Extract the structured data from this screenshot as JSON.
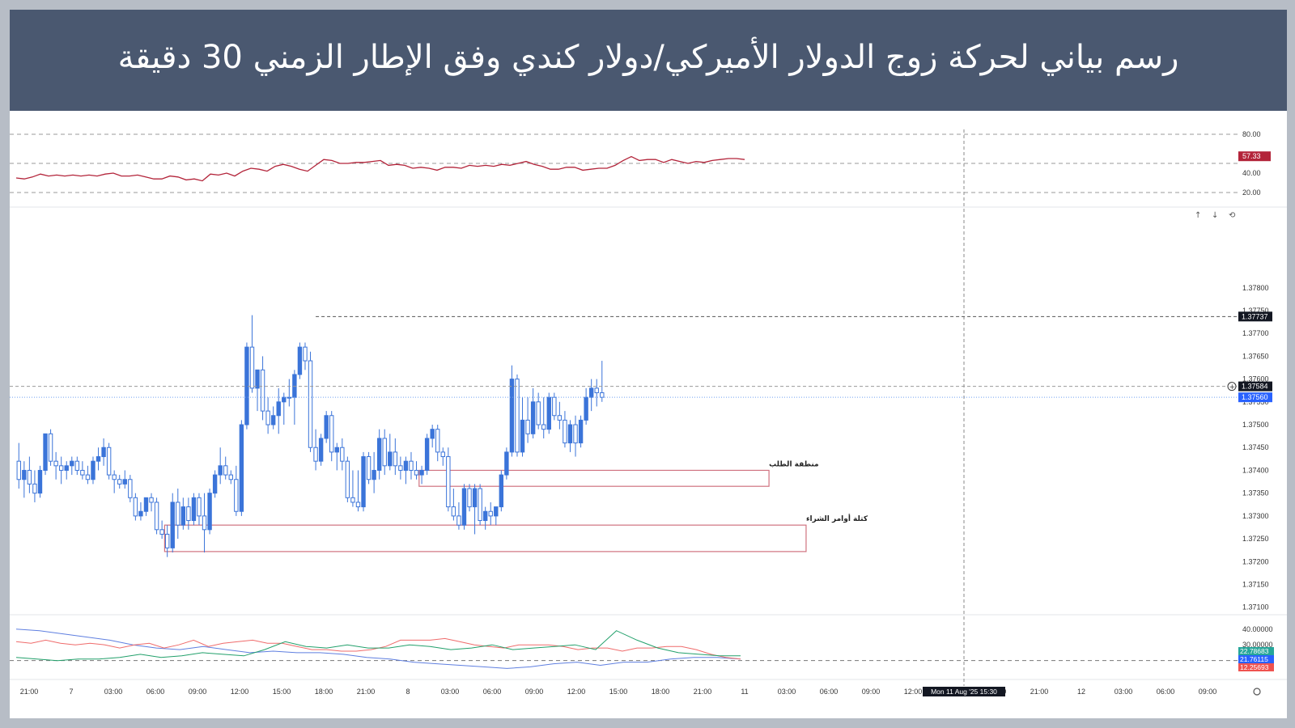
{
  "title": "رسم بياني لحركة زوج الدولار الأميركي/دولار كندي وفق الإطار الزمني 30 دقيقة",
  "colors": {
    "banner": "#4a5870",
    "candle": "#3b74d9",
    "zone": "#d0727f",
    "rsi": "#b3243a"
  },
  "rsi_panel": {
    "ticks": [
      "80.00",
      "40.00",
      "20.00"
    ],
    "badge": "57.33"
  },
  "adx_panel": {
    "ticks": [
      "40.00000",
      "30.00000"
    ],
    "badges": [
      {
        "label": "22.78683",
        "color": "#26a69a"
      },
      {
        "label": "21.76115",
        "color": "#2962ff"
      },
      {
        "label": "12.25693",
        "color": "#ef5350"
      }
    ]
  },
  "time_labels": [
    "21:00",
    "7",
    "03:00",
    "06:00",
    "09:00",
    "12:00",
    "15:00",
    "18:00",
    "21:00",
    "8",
    "03:00",
    "06:00",
    "09:00",
    "12:00",
    "15:00",
    "18:00",
    "21:00",
    "11",
    "03:00",
    "06:00",
    "09:00",
    "12:00",
    "18:00",
    "21:00",
    "12",
    "03:00",
    "06:00",
    "09:00"
  ],
  "crosshair_label": "Mon 11 Aug '25   15:30",
  "toolbar": {
    "up": "↑",
    "down": "↓",
    "reset": "⟲"
  },
  "chart_data": {
    "type": "candlestick",
    "title": "رسم بياني لحركة زوج الدولار الأميركي/دولار كندي وفق الإطار الزمني 30 دقيقة",
    "ylim": [
      1.3708,
      1.3789
    ],
    "y_ticks": [
      "1.37800",
      "1.37750",
      "1.37700",
      "1.37650",
      "1.37600",
      "1.37550",
      "1.37500",
      "1.37450",
      "1.37400",
      "1.37350",
      "1.37300",
      "1.37250",
      "1.37200",
      "1.37150",
      "1.37100"
    ],
    "price_badges": [
      {
        "label": "1.37737",
        "value": 1.37737,
        "style": "dark"
      },
      {
        "label": "1.37584",
        "value": 1.37584,
        "style": "dark"
      },
      {
        "label": "1.37560",
        "value": 1.3756,
        "style": "blue"
      }
    ],
    "zones": [
      {
        "label": "منطقة الطلب",
        "top": 1.374,
        "bottom": 1.37365,
        "from": 76,
        "to": 142
      },
      {
        "label": "كتلة أوامر الشراء",
        "top": 1.3728,
        "bottom": 1.37222,
        "from": 28,
        "to": 149
      }
    ],
    "ohlc": [
      [
        1.3742,
        1.3746,
        1.3736,
        1.3738
      ],
      [
        1.3738,
        1.3742,
        1.3734,
        1.374
      ],
      [
        1.374,
        1.3743,
        1.3735,
        1.3737
      ],
      [
        1.3737,
        1.374,
        1.3733,
        1.3735
      ],
      [
        1.3735,
        1.3741,
        1.3734,
        1.374
      ],
      [
        1.374,
        1.3748,
        1.3739,
        1.3748
      ],
      [
        1.3748,
        1.3749,
        1.3741,
        1.3742
      ],
      [
        1.3742,
        1.3744,
        1.3738,
        1.3741
      ],
      [
        1.3741,
        1.3743,
        1.3737,
        1.374
      ],
      [
        1.374,
        1.3742,
        1.3738,
        1.3741
      ],
      [
        1.3741,
        1.3743,
        1.3739,
        1.3742
      ],
      [
        1.3742,
        1.3743,
        1.3739,
        1.374
      ],
      [
        1.374,
        1.3742,
        1.3738,
        1.3739
      ],
      [
        1.3739,
        1.3741,
        1.3737,
        1.3738
      ],
      [
        1.3738,
        1.3743,
        1.3737,
        1.3742
      ],
      [
        1.3742,
        1.3745,
        1.374,
        1.3743
      ],
      [
        1.3743,
        1.3747,
        1.3741,
        1.3745
      ],
      [
        1.3745,
        1.3746,
        1.3738,
        1.3739
      ],
      [
        1.3739,
        1.374,
        1.3735,
        1.3738
      ],
      [
        1.3738,
        1.3739,
        1.3736,
        1.3737
      ],
      [
        1.3737,
        1.374,
        1.3736,
        1.3738
      ],
      [
        1.3738,
        1.3739,
        1.3733,
        1.3734
      ],
      [
        1.3734,
        1.3735,
        1.3729,
        1.373
      ],
      [
        1.373,
        1.3733,
        1.3729,
        1.3731
      ],
      [
        1.3731,
        1.3734,
        1.373,
        1.3734
      ],
      [
        1.3734,
        1.3735,
        1.3731,
        1.3733
      ],
      [
        1.3733,
        1.3734,
        1.3726,
        1.3727
      ],
      [
        1.3727,
        1.3729,
        1.3725,
        1.3726
      ],
      [
        1.3726,
        1.3728,
        1.3721,
        1.3723
      ],
      [
        1.3723,
        1.3735,
        1.3722,
        1.3733
      ],
      [
        1.3733,
        1.3736,
        1.3725,
        1.3728
      ],
      [
        1.3728,
        1.3734,
        1.3727,
        1.3732
      ],
      [
        1.3732,
        1.3734,
        1.3727,
        1.3729
      ],
      [
        1.3729,
        1.3735,
        1.3728,
        1.3734
      ],
      [
        1.3734,
        1.3735,
        1.3728,
        1.373
      ],
      [
        1.373,
        1.3735,
        1.3722,
        1.3727
      ],
      [
        1.3727,
        1.3736,
        1.3726,
        1.3735
      ],
      [
        1.3735,
        1.374,
        1.3734,
        1.3739
      ],
      [
        1.3739,
        1.3745,
        1.3737,
        1.3741
      ],
      [
        1.3741,
        1.3743,
        1.3738,
        1.3739
      ],
      [
        1.3739,
        1.374,
        1.3737,
        1.3738
      ],
      [
        1.3738,
        1.3741,
        1.373,
        1.3731
      ],
      [
        1.3731,
        1.3751,
        1.373,
        1.375
      ],
      [
        1.375,
        1.3768,
        1.3749,
        1.3767
      ],
      [
        1.3767,
        1.3774,
        1.3757,
        1.3758
      ],
      [
        1.3758,
        1.3762,
        1.3753,
        1.3762
      ],
      [
        1.3762,
        1.3765,
        1.3751,
        1.3753
      ],
      [
        1.3753,
        1.3756,
        1.3748,
        1.375
      ],
      [
        1.375,
        1.3754,
        1.3749,
        1.3752
      ],
      [
        1.3752,
        1.3758,
        1.3748,
        1.3755
      ],
      [
        1.3755,
        1.3757,
        1.375,
        1.3756
      ],
      [
        1.3756,
        1.376,
        1.3754,
        1.3756
      ],
      [
        1.3756,
        1.3762,
        1.375,
        1.3761
      ],
      [
        1.3761,
        1.3768,
        1.376,
        1.3767
      ],
      [
        1.3767,
        1.3768,
        1.3762,
        1.3764
      ],
      [
        1.3764,
        1.3766,
        1.3744,
        1.3745
      ],
      [
        1.3745,
        1.3749,
        1.374,
        1.3742
      ],
      [
        1.3742,
        1.3748,
        1.3741,
        1.3747
      ],
      [
        1.3747,
        1.3753,
        1.3746,
        1.3752
      ],
      [
        1.3752,
        1.3753,
        1.3742,
        1.3744
      ],
      [
        1.3744,
        1.3746,
        1.374,
        1.3745
      ],
      [
        1.3745,
        1.3747,
        1.374,
        1.3742
      ],
      [
        1.3742,
        1.3743,
        1.3733,
        1.3734
      ],
      [
        1.3734,
        1.374,
        1.3732,
        1.3733
      ],
      [
        1.3733,
        1.374,
        1.3731,
        1.3732
      ],
      [
        1.3732,
        1.3744,
        1.3731,
        1.3743
      ],
      [
        1.3743,
        1.3744,
        1.3737,
        1.3738
      ],
      [
        1.3738,
        1.3744,
        1.3735,
        1.374
      ],
      [
        1.374,
        1.3749,
        1.3738,
        1.3747
      ],
      [
        1.3747,
        1.3749,
        1.3739,
        1.3741
      ],
      [
        1.3741,
        1.3748,
        1.374,
        1.3744
      ],
      [
        1.3744,
        1.3747,
        1.3739,
        1.3741
      ],
      [
        1.3741,
        1.3743,
        1.3738,
        1.374
      ],
      [
        1.374,
        1.3743,
        1.3737,
        1.3742
      ],
      [
        1.3742,
        1.3744,
        1.3738,
        1.374
      ],
      [
        1.374,
        1.3742,
        1.3738,
        1.3739
      ],
      [
        1.3739,
        1.3741,
        1.3737,
        1.374
      ],
      [
        1.374,
        1.3748,
        1.3739,
        1.3747
      ],
      [
        1.3747,
        1.375,
        1.3745,
        1.3749
      ],
      [
        1.3749,
        1.375,
        1.3742,
        1.3744
      ],
      [
        1.3744,
        1.3745,
        1.3741,
        1.3743
      ],
      [
        1.3743,
        1.3745,
        1.3731,
        1.3732
      ],
      [
        1.3732,
        1.3736,
        1.3729,
        1.373
      ],
      [
        1.373,
        1.3733,
        1.3727,
        1.3728
      ],
      [
        1.3728,
        1.3737,
        1.3727,
        1.3736
      ],
      [
        1.3736,
        1.3737,
        1.3731,
        1.3732
      ],
      [
        1.3732,
        1.3737,
        1.3726,
        1.3736
      ],
      [
        1.3736,
        1.3737,
        1.3728,
        1.3729
      ],
      [
        1.3729,
        1.3732,
        1.3727,
        1.3731
      ],
      [
        1.3731,
        1.3733,
        1.3728,
        1.373
      ],
      [
        1.373,
        1.3732,
        1.3728,
        1.3732
      ],
      [
        1.3732,
        1.374,
        1.3731,
        1.3739
      ],
      [
        1.3739,
        1.3745,
        1.3738,
        1.3744
      ],
      [
        1.3744,
        1.3763,
        1.3743,
        1.376
      ],
      [
        1.376,
        1.3761,
        1.3743,
        1.3744
      ],
      [
        1.3744,
        1.3756,
        1.3743,
        1.3751
      ],
      [
        1.3751,
        1.3756,
        1.3746,
        1.3748
      ],
      [
        1.3748,
        1.3758,
        1.3747,
        1.3755
      ],
      [
        1.3755,
        1.3757,
        1.3749,
        1.375
      ],
      [
        1.375,
        1.3756,
        1.3747,
        1.3749
      ],
      [
        1.3749,
        1.3757,
        1.3748,
        1.3756
      ],
      [
        1.3756,
        1.3757,
        1.3751,
        1.3752
      ],
      [
        1.3752,
        1.3755,
        1.3749,
        1.3751
      ],
      [
        1.3751,
        1.3753,
        1.3745,
        1.3746
      ],
      [
        1.3746,
        1.3751,
        1.3744,
        1.375
      ],
      [
        1.375,
        1.3752,
        1.3743,
        1.3746
      ],
      [
        1.3746,
        1.3752,
        1.3745,
        1.3751
      ],
      [
        1.3751,
        1.3758,
        1.375,
        1.3756
      ],
      [
        1.3756,
        1.376,
        1.3753,
        1.3758
      ],
      [
        1.3758,
        1.376,
        1.3754,
        1.3757
      ],
      [
        1.3757,
        1.3764,
        1.3755,
        1.3756
      ]
    ],
    "rsi": [
      35,
      34,
      36,
      39,
      37,
      38,
      37,
      38,
      37,
      38,
      37,
      39,
      40,
      37,
      37,
      38,
      36,
      34,
      34,
      37,
      36,
      33,
      34,
      32,
      39,
      38,
      40,
      37,
      42,
      45,
      44,
      42,
      47,
      49,
      47,
      44,
      42,
      48,
      54,
      53,
      50,
      50,
      51,
      51,
      52,
      53,
      48,
      49,
      48,
      45,
      46,
      45,
      43,
      46,
      46,
      45,
      48,
      47,
      48,
      47,
      49,
      48,
      50,
      52,
      49,
      47,
      44,
      44,
      46,
      46,
      43,
      44,
      45,
      45,
      48,
      53,
      57,
      53,
      54,
      54,
      51,
      54,
      52,
      50,
      52,
      51,
      53,
      54,
      55,
      55,
      54
    ],
    "adx_red": [
      32,
      31,
      33,
      31,
      30,
      31,
      30,
      28,
      30,
      31,
      28,
      30,
      33,
      29,
      31,
      32,
      33,
      31,
      31,
      29,
      27,
      27,
      26,
      26,
      27,
      29,
      33,
      33,
      33,
      34,
      32,
      30,
      29,
      28,
      30,
      30,
      30,
      29,
      27,
      28,
      28,
      26,
      28,
      28,
      29,
      29,
      27,
      24,
      22,
      21
    ],
    "adx_blue": [
      40,
      39,
      37,
      35,
      33,
      30,
      28,
      27,
      29,
      27,
      25,
      26,
      25,
      25,
      24,
      22,
      21,
      19,
      18,
      17,
      16,
      15,
      16,
      18,
      19,
      17,
      19,
      19,
      21,
      22,
      22,
      21
    ],
    "adx_green": [
      22,
      21,
      20,
      21,
      21,
      22,
      24,
      22,
      23,
      25,
      24,
      23,
      27,
      32,
      29,
      28,
      30,
      28,
      28,
      30,
      29,
      27,
      28,
      30,
      27,
      28,
      29,
      30,
      27,
      39,
      33,
      28,
      25,
      24,
      23,
      23
    ]
  }
}
